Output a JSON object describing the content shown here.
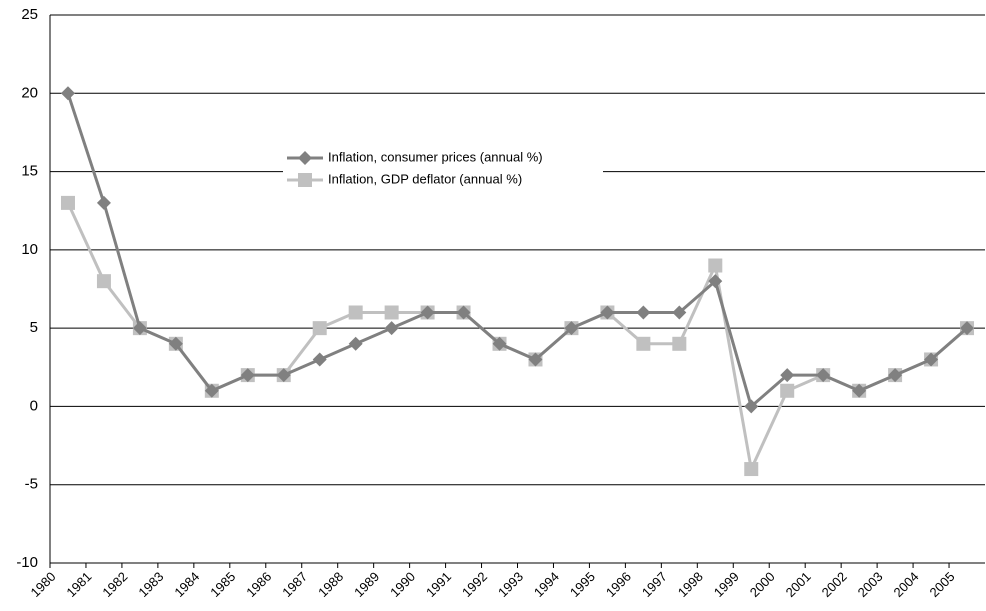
{
  "chart_data": {
    "type": "line",
    "categories": [
      "1980",
      "1981",
      "1982",
      "1983",
      "1984",
      "1985",
      "1986",
      "1987",
      "1988",
      "1989",
      "1990",
      "1991",
      "1992",
      "1993",
      "1994",
      "1995",
      "1996",
      "1997",
      "1998",
      "1999",
      "2000",
      "2001",
      "2002",
      "2003",
      "2004",
      "2005"
    ],
    "series": [
      {
        "name": "Inflation, consumer prices (annual %)",
        "color": "#808080",
        "marker": "diamond",
        "values": [
          20,
          13,
          5,
          4,
          1,
          2,
          2,
          3,
          4,
          5,
          6,
          6,
          4,
          3,
          5,
          6,
          6,
          6,
          8,
          0,
          2,
          2,
          1,
          2,
          3,
          5
        ]
      },
      {
        "name": "Inflation, GDP deflator (annual %)",
        "color": "#c0c0c0",
        "marker": "square",
        "values": [
          13,
          8,
          5,
          4,
          1,
          2,
          2,
          5,
          6,
          6,
          6,
          6,
          4,
          3,
          5,
          6,
          4,
          4,
          9,
          -4,
          1,
          2,
          1,
          2,
          3,
          5
        ]
      }
    ],
    "ylim": [
      -10,
      25
    ],
    "yticks": [
      -10,
      -5,
      0,
      5,
      10,
      15,
      20,
      25
    ],
    "grid": true
  }
}
